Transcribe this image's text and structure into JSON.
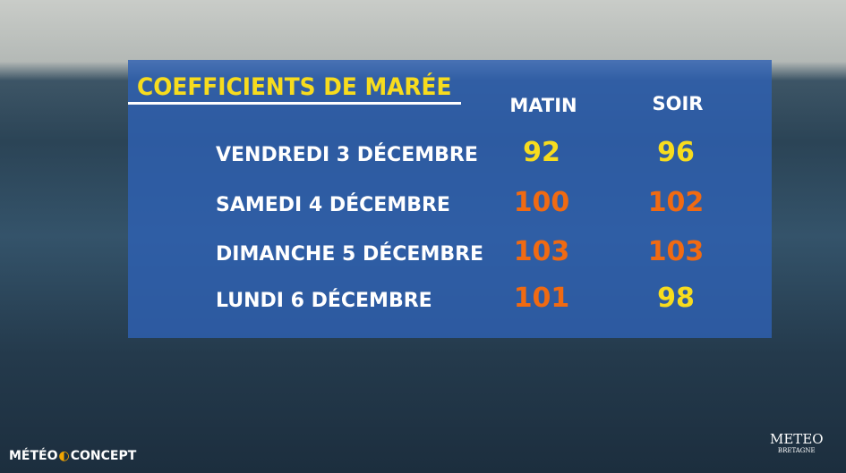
{
  "header": {
    "title": "COEFFICIENTS DE MARÉE"
  },
  "table": {
    "columns": [
      "MATIN",
      "SOIR"
    ],
    "rows": [
      {
        "day": "VENDREDI 3 DÉCEMBRE",
        "values": [
          92,
          96
        ],
        "colors": [
          "#f7dc1e",
          "#f7dc1e"
        ]
      },
      {
        "day": "SAMEDI 4 DÉCEMBRE",
        "values": [
          100,
          102
        ],
        "colors": [
          "#f06a12",
          "#f06a12"
        ]
      },
      {
        "day": "DIMANCHE 5 DÉCEMBRE",
        "values": [
          103,
          103
        ],
        "colors": [
          "#f06a12",
          "#f06a12"
        ]
      },
      {
        "day": "LUNDI 6 DÉCEMBRE",
        "values": [
          101,
          98
        ],
        "colors": [
          "#f06a12",
          "#f7dc1e"
        ]
      }
    ]
  },
  "logos": {
    "left": [
      "MÉTÉO",
      "CONCEPT"
    ],
    "right": [
      "METEO",
      "BRETAGNE"
    ]
  }
}
